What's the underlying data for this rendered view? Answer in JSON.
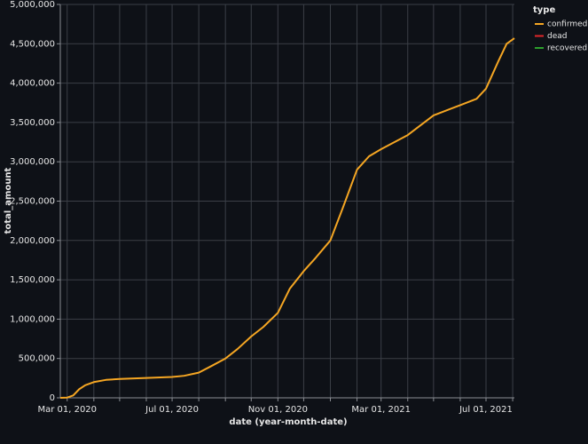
{
  "chart_data": {
    "type": "line",
    "x_label": "date (year-month-date)",
    "y_label": "total_amount",
    "legend_title": "type",
    "legend": "right",
    "grid": true,
    "x": [
      "2020-02-22",
      "2020-03-01",
      "2020-03-08",
      "2020-03-15",
      "2020-03-22",
      "2020-04-01",
      "2020-04-15",
      "2020-05-01",
      "2020-06-01",
      "2020-07-01",
      "2020-07-15",
      "2020-08-01",
      "2020-08-15",
      "2020-09-01",
      "2020-09-15",
      "2020-10-01",
      "2020-10-15",
      "2020-11-01",
      "2020-11-15",
      "2020-12-01",
      "2020-12-15",
      "2021-01-01",
      "2021-01-15",
      "2021-02-01",
      "2021-02-15",
      "2021-03-01",
      "2021-04-01",
      "2021-05-01",
      "2021-06-01",
      "2021-06-20",
      "2021-07-01",
      "2021-07-15",
      "2021-07-25",
      "2021-08-03"
    ],
    "series": [
      {
        "name": "confirmed",
        "color": "#f5a623",
        "values": [
          0,
          3000,
          30000,
          110000,
          160000,
          200000,
          228000,
          240000,
          252000,
          265000,
          280000,
          320000,
          400000,
          500000,
          620000,
          780000,
          900000,
          1080000,
          1390000,
          1610000,
          1780000,
          2000000,
          2400000,
          2900000,
          3070000,
          3160000,
          3340000,
          3590000,
          3720000,
          3800000,
          3930000,
          4270000,
          4500000,
          4570000
        ]
      },
      {
        "name": "dead",
        "color": "#e0262a",
        "values": [
          null,
          null,
          null,
          null,
          null,
          null,
          null,
          null,
          null,
          null,
          null,
          null,
          null,
          null,
          null,
          null,
          null,
          null,
          null,
          null,
          null,
          null,
          null,
          null,
          null,
          null,
          null,
          null,
          null,
          null,
          null,
          null,
          null,
          null
        ]
      },
      {
        "name": "recovered",
        "color": "#2ca02c",
        "values": [
          null,
          null,
          null,
          null,
          null,
          null,
          null,
          null,
          null,
          null,
          null,
          null,
          null,
          null,
          null,
          null,
          null,
          null,
          null,
          null,
          null,
          null,
          null,
          null,
          null,
          null,
          null,
          null,
          null,
          null,
          null,
          null,
          null,
          null
        ]
      }
    ],
    "xlim": [
      "2020-02-22",
      "2021-08-03"
    ],
    "xticks": [
      {
        "value": "2020-03-01",
        "label": "Mar 01, 2020"
      },
      {
        "value": "2020-04-01",
        "label": null
      },
      {
        "value": "2020-05-01",
        "label": null
      },
      {
        "value": "2020-06-01",
        "label": null
      },
      {
        "value": "2020-07-01",
        "label": "Jul 01, 2020"
      },
      {
        "value": "2020-08-01",
        "label": null
      },
      {
        "value": "2020-09-01",
        "label": null
      },
      {
        "value": "2020-10-01",
        "label": null
      },
      {
        "value": "2020-11-01",
        "label": "Nov 01, 2020"
      },
      {
        "value": "2020-12-01",
        "label": null
      },
      {
        "value": "2021-01-01",
        "label": null
      },
      {
        "value": "2021-02-01",
        "label": null
      },
      {
        "value": "2021-03-01",
        "label": "Mar 01, 2021"
      },
      {
        "value": "2021-04-01",
        "label": null
      },
      {
        "value": "2021-05-01",
        "label": null
      },
      {
        "value": "2021-06-01",
        "label": null
      },
      {
        "value": "2021-07-01",
        "label": "Jul 01, 2021"
      },
      {
        "value": "2021-08-01",
        "label": null
      }
    ],
    "ylim": [
      0,
      5000000
    ],
    "yticks": [
      0,
      {
        "value": 500000,
        "label": "500,000"
      },
      {
        "value": 1000000,
        "label": "1,000,000"
      },
      {
        "value": 1500000,
        "label": "1,500,000"
      },
      {
        "value": 2000000,
        "label": "2,000,000"
      },
      {
        "value": 2500000,
        "label": "2,500,000"
      },
      {
        "value": 3000000,
        "label": "3,000,000"
      },
      {
        "value": 3500000,
        "label": "3,500,000"
      },
      {
        "value": 4000000,
        "label": "4,000,000"
      },
      {
        "value": 4500000,
        "label": "4,500,000"
      },
      {
        "value": 5000000,
        "label": "5,000,000"
      }
    ]
  }
}
